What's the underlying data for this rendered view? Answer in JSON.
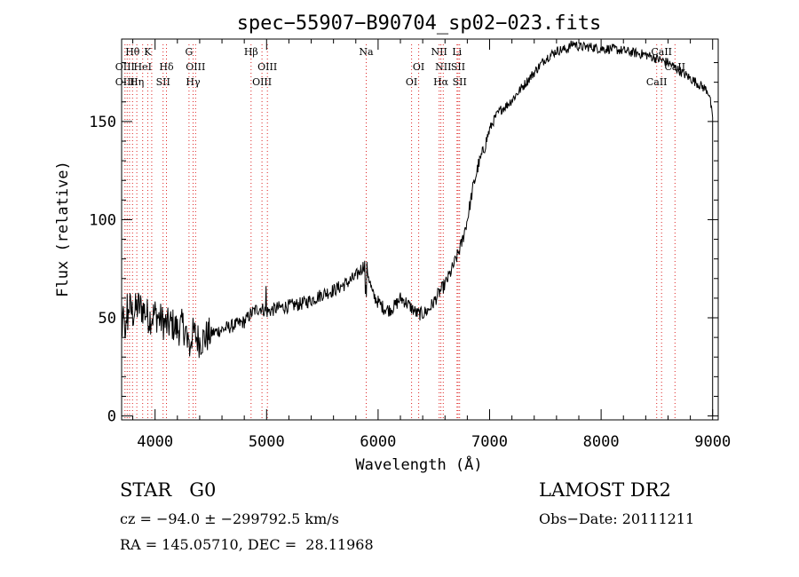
{
  "chart_data": {
    "type": "line",
    "title": "spec−55907−B90704_sp02−023.fits",
    "xlabel": "Wavelength (Å)",
    "ylabel": "Flux (relative)",
    "xlim": [
      3700,
      9050
    ],
    "ylim": [
      -2,
      192
    ],
    "xticks": [
      4000,
      5000,
      6000,
      7000,
      8000,
      9000
    ],
    "yticks": [
      0,
      50,
      100,
      150
    ],
    "grid": false,
    "series": [
      {
        "x": [
          3700,
          3750,
          3800,
          3850,
          3900,
          3950,
          4000,
          4050,
          4100,
          4150,
          4200,
          4250,
          4300,
          4350,
          4400,
          4450,
          4500,
          4600,
          4700,
          4800,
          4860,
          4900,
          4950,
          5000,
          5050,
          5100,
          5200,
          5300,
          5400,
          5500,
          5600,
          5700,
          5800,
          5850,
          5890,
          5920,
          5950,
          6000,
          6050,
          6100,
          6150,
          6200,
          6250,
          6300,
          6350,
          6400,
          6450,
          6500,
          6550,
          6600,
          6650,
          6700,
          6750,
          6800,
          6850,
          6900,
          6950,
          7000,
          7050,
          7100,
          7150,
          7200,
          7300,
          7400,
          7500,
          7600,
          7700,
          7750,
          7800,
          7900,
          8000,
          8100,
          8200,
          8300,
          8400,
          8450,
          8500,
          8550,
          8600,
          8650,
          8700,
          8750,
          8800,
          8850,
          8900,
          8950,
          8970,
          8985,
          9000
        ],
        "y": [
          55,
          58,
          52,
          56,
          54,
          50,
          52,
          49,
          46,
          47,
          44,
          46,
          40,
          42,
          38,
          40,
          42,
          44,
          46,
          48,
          52,
          54,
          55,
          53,
          54,
          55,
          56,
          57,
          59,
          62,
          64,
          67,
          71,
          75,
          78,
          70,
          62,
          58,
          55,
          54,
          56,
          60,
          58,
          55,
          52,
          52,
          54,
          58,
          63,
          67,
          73,
          80,
          88,
          100,
          116,
          128,
          136,
          146,
          152,
          156,
          158,
          161,
          168,
          175,
          182,
          186,
          187,
          190,
          188,
          188,
          187,
          187,
          186,
          185,
          184,
          183,
          182,
          181,
          180,
          178,
          176,
          174,
          172,
          170,
          168,
          166,
          164,
          158,
          150
        ]
      }
    ],
    "annotations": [
      {
        "text": "Hθ",
        "x": 3798,
        "row": 1
      },
      {
        "text": "K",
        "x": 3934,
        "row": 1
      },
      {
        "text": "OIII",
        "x": 3730,
        "row": 2
      },
      {
        "text": "HeI",
        "x": 3889,
        "row": 2
      },
      {
        "text": "OIII",
        "x": 3730,
        "row": 3
      },
      {
        "text": "Hη",
        "x": 3836,
        "row": 3
      },
      {
        "text": "Hδ",
        "x": 4102,
        "row": 2
      },
      {
        "text": "SII",
        "x": 4072,
        "row": 3
      },
      {
        "text": "G",
        "x": 4304,
        "row": 1
      },
      {
        "text": "OIII",
        "x": 4363,
        "row": 2
      },
      {
        "text": "Hγ",
        "x": 4341,
        "row": 3
      },
      {
        "text": "Hβ",
        "x": 4861,
        "row": 1
      },
      {
        "text": "OIII",
        "x": 5007,
        "row": 2
      },
      {
        "text": "OIII",
        "x": 4959,
        "row": 3
      },
      {
        "text": "Na",
        "x": 5893,
        "row": 1
      },
      {
        "text": "OI",
        "x": 6364,
        "row": 2
      },
      {
        "text": "OI",
        "x": 6300,
        "row": 3
      },
      {
        "text": "NII",
        "x": 6548,
        "row": 1
      },
      {
        "text": "Li",
        "x": 6708,
        "row": 1
      },
      {
        "text": "NII",
        "x": 6584,
        "row": 2
      },
      {
        "text": "SII",
        "x": 6717,
        "row": 2
      },
      {
        "text": "Hα",
        "x": 6563,
        "row": 3
      },
      {
        "text": "SII",
        "x": 6731,
        "row": 3
      },
      {
        "text": "CaII",
        "x": 8542,
        "row": 1
      },
      {
        "text": "CaII",
        "x": 8662,
        "row": 2
      },
      {
        "text": "CaII",
        "x": 8498,
        "row": 3
      }
    ],
    "line_markers": [
      3730,
      3750,
      3771,
      3798,
      3836,
      3889,
      3934,
      3970,
      4072,
      4102,
      4304,
      4341,
      4363,
      4861,
      4959,
      5007,
      5893,
      6300,
      6364,
      6548,
      6563,
      6584,
      6708,
      6717,
      6731,
      8498,
      8542,
      8662
    ]
  },
  "footer": {
    "object": "STAR   G0",
    "survey": "LAMOST DR2",
    "cz": "cz = −94.0 ± −299792.5 km/s",
    "obs_date": "Obs−Date: 20111211",
    "coords": "RA = 145.05710, DEC =  28.11968"
  }
}
